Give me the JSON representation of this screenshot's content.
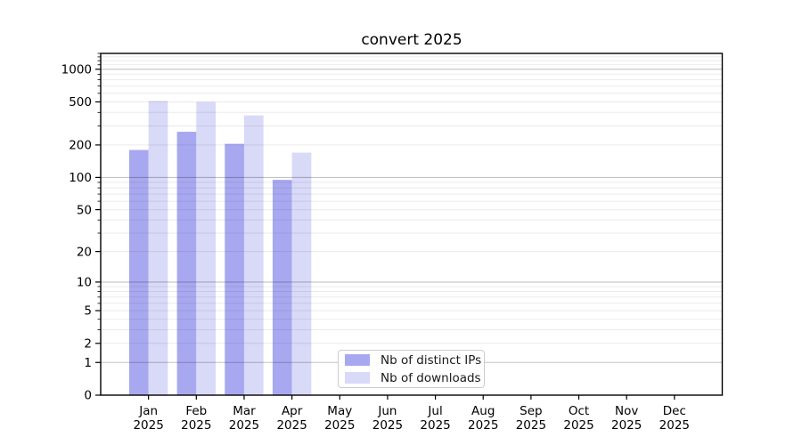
{
  "title": "convert 2025",
  "year_label": "2025",
  "legend": {
    "items": [
      {
        "label": "Nb of distinct IPs",
        "color": "#a8a8f0"
      },
      {
        "label": "Nb of downloads",
        "color": "#d9d9f8"
      }
    ]
  },
  "chart_data": {
    "type": "bar",
    "title": "convert 2025",
    "xlabel": "",
    "ylabel": "",
    "yscale": "log1p (position proportional to log10(1+y), 0 at baseline)",
    "categories": [
      "Jan 2025",
      "Feb 2025",
      "Mar 2025",
      "Apr 2025",
      "May 2025",
      "Jun 2025",
      "Jul 2025",
      "Aug 2025",
      "Sep 2025",
      "Oct 2025",
      "Nov 2025",
      "Dec 2025"
    ],
    "month_labels": [
      "Jan",
      "Feb",
      "Mar",
      "Apr",
      "May",
      "Jun",
      "Jul",
      "Aug",
      "Sep",
      "Oct",
      "Nov",
      "Dec"
    ],
    "series": [
      {
        "name": "Nb of distinct IPs",
        "color": "#a8a8f0",
        "values": [
          180,
          265,
          205,
          95,
          null,
          null,
          null,
          null,
          null,
          null,
          null,
          null
        ]
      },
      {
        "name": "Nb of downloads",
        "color": "#d9d9f8",
        "values": [
          510,
          500,
          375,
          170,
          null,
          null,
          null,
          null,
          null,
          null,
          null,
          null
        ]
      }
    ],
    "yticks": [
      0,
      1,
      2,
      5,
      10,
      20,
      50,
      100,
      200,
      500,
      1000
    ],
    "ylim": [
      0,
      1400
    ],
    "grid": "horizontal; dark major lines at 1,10,100,1000; faint minor lines at log subdivisions",
    "legend_position": "inside axes, lower center-left",
    "colors": {
      "major_grid": "rgba(0,0,0,0.24)",
      "minor_grid": "rgba(0,0,0,0.08)",
      "spine": "#000000"
    }
  }
}
